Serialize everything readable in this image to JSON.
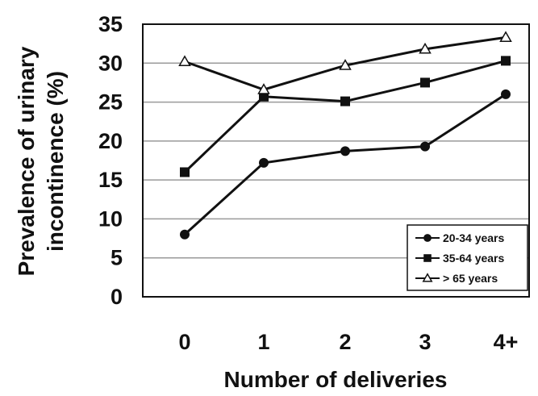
{
  "chart_data": {
    "type": "line",
    "title": "",
    "xlabel": "Number of deliveries",
    "ylabel_lines": [
      "Prevalence of urinary",
      "incontinence (%)"
    ],
    "categories": [
      "0",
      "1",
      "2",
      "3",
      "4+"
    ],
    "y_ticks": [
      "0",
      "5",
      "10",
      "15",
      "20",
      "25",
      "30",
      "35"
    ],
    "ylim": [
      0,
      35
    ],
    "grid": true,
    "legend_position": "bottom-right",
    "series": [
      {
        "name": "20-34 years",
        "marker": "filled-circle",
        "values": [
          8,
          17.2,
          18.7,
          19.3,
          26
        ]
      },
      {
        "name": "35-64 years",
        "marker": "filled-square",
        "values": [
          16,
          25.7,
          25.1,
          27.5,
          30.3
        ]
      },
      {
        "name": "> 65 years",
        "marker": "open-triangle",
        "values": [
          30.2,
          26.6,
          29.7,
          31.8,
          33.3
        ]
      }
    ]
  }
}
